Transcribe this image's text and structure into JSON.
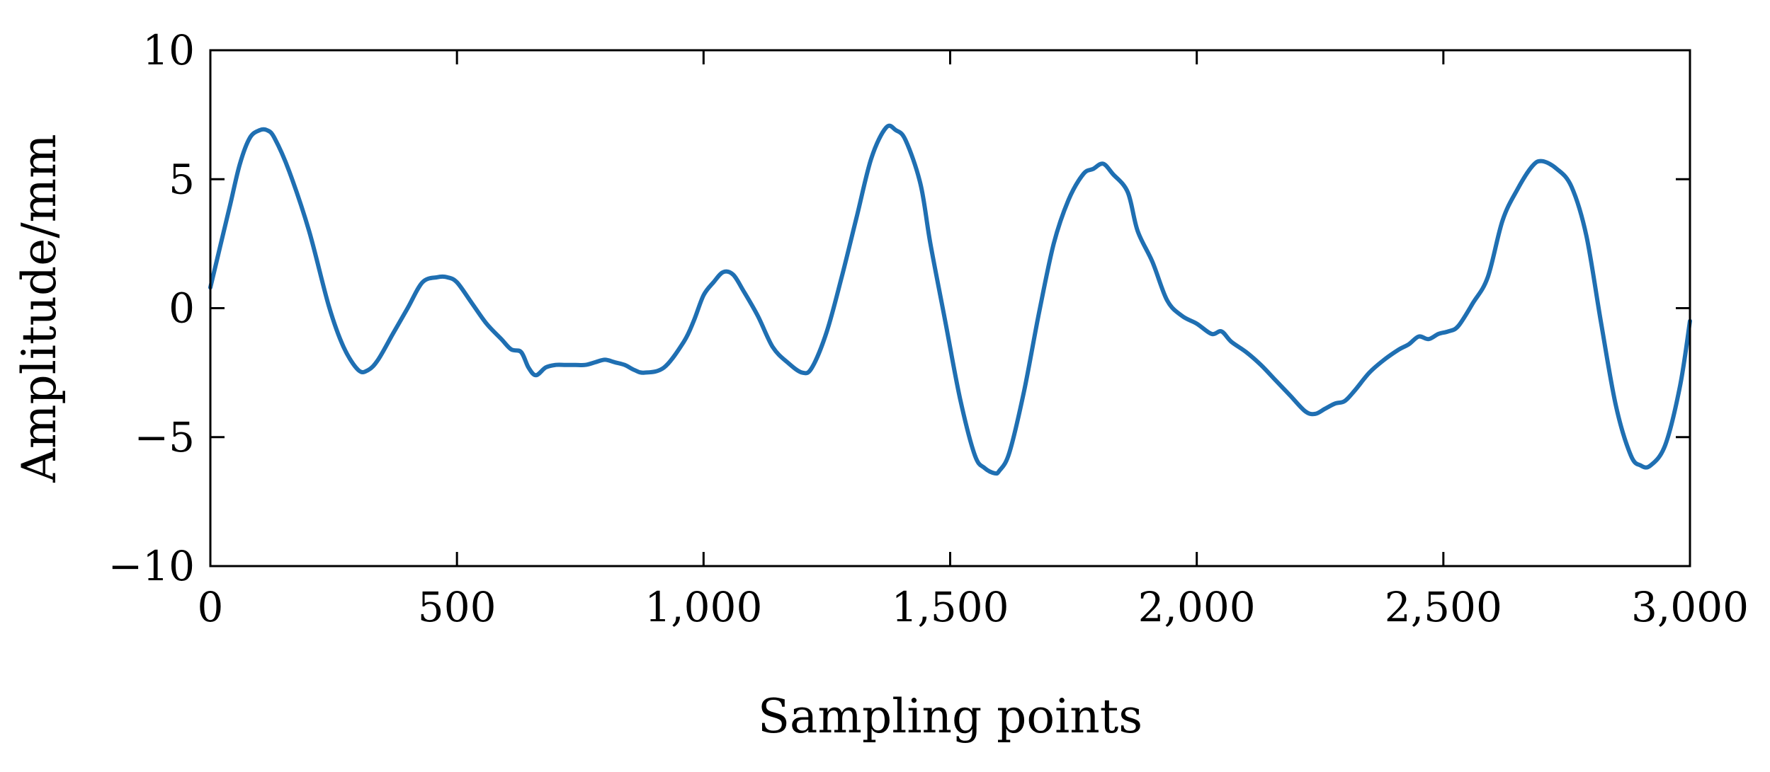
{
  "chart_data": {
    "type": "line",
    "title": "",
    "xlabel": "Sampling points",
    "ylabel": "Amplitude/mm",
    "xlim": [
      0,
      3000
    ],
    "ylim": [
      -10,
      10
    ],
    "grid": false,
    "legend": "none",
    "x_ticks": [
      {
        "value": 0,
        "label": "0"
      },
      {
        "value": 500,
        "label": "500"
      },
      {
        "value": 1000,
        "label": "1,000"
      },
      {
        "value": 1500,
        "label": "1,500"
      },
      {
        "value": 2000,
        "label": "2,000"
      },
      {
        "value": 2500,
        "label": "2,500"
      },
      {
        "value": 3000,
        "label": "3,000"
      }
    ],
    "y_ticks": [
      {
        "value": 10,
        "label": "10"
      },
      {
        "value": 5,
        "label": "5"
      },
      {
        "value": 0,
        "label": "0"
      },
      {
        "value": -5,
        "label": "−5"
      },
      {
        "value": -10,
        "label": "−10"
      }
    ],
    "series": [
      {
        "color": "#1f6fb2",
        "x": [
          0,
          20,
          40,
          60,
          80,
          100,
          115,
          130,
          160,
          200,
          240,
          270,
          300,
          320,
          340,
          370,
          400,
          430,
          460,
          480,
          500,
          530,
          560,
          590,
          610,
          630,
          645,
          660,
          680,
          700,
          720,
          740,
          760,
          780,
          800,
          820,
          840,
          860,
          880,
          920,
          960,
          980,
          1000,
          1020,
          1040,
          1060,
          1080,
          1110,
          1140,
          1170,
          1200,
          1220,
          1250,
          1280,
          1310,
          1340,
          1370,
          1390,
          1410,
          1440,
          1460,
          1490,
          1520,
          1550,
          1570,
          1590,
          1600,
          1620,
          1650,
          1680,
          1710,
          1740,
          1770,
          1790,
          1810,
          1830,
          1860,
          1880,
          1910,
          1940,
          1970,
          2000,
          2030,
          2050,
          2070,
          2100,
          2130,
          2160,
          2190,
          2220,
          2240,
          2260,
          2280,
          2300,
          2320,
          2350,
          2380,
          2410,
          2430,
          2450,
          2470,
          2490,
          2510,
          2530,
          2560,
          2590,
          2620,
          2650,
          2680,
          2700,
          2730,
          2760,
          2790,
          2820,
          2850,
          2880,
          2900,
          2920,
          2950,
          2980,
          3000
        ],
        "values": [
          0.8,
          2.4,
          4.0,
          5.6,
          6.6,
          6.9,
          6.9,
          6.6,
          5.3,
          3.0,
          0.1,
          -1.5,
          -2.4,
          -2.4,
          -2.0,
          -1.0,
          0.0,
          1.0,
          1.2,
          1.2,
          1.0,
          0.2,
          -0.6,
          -1.2,
          -1.6,
          -1.7,
          -2.3,
          -2.6,
          -2.3,
          -2.2,
          -2.2,
          -2.2,
          -2.2,
          -2.1,
          -2.0,
          -2.1,
          -2.2,
          -2.4,
          -2.5,
          -2.3,
          -1.3,
          -0.5,
          0.5,
          1.0,
          1.4,
          1.3,
          0.7,
          -0.3,
          -1.5,
          -2.1,
          -2.5,
          -2.3,
          -0.9,
          1.2,
          3.5,
          5.8,
          7.0,
          6.9,
          6.5,
          4.8,
          2.5,
          -0.5,
          -3.5,
          -5.7,
          -6.2,
          -6.4,
          -6.3,
          -5.6,
          -3.2,
          -0.2,
          2.5,
          4.2,
          5.2,
          5.4,
          5.6,
          5.2,
          4.5,
          3.0,
          1.8,
          0.3,
          -0.3,
          -0.6,
          -1.0,
          -0.9,
          -1.3,
          -1.7,
          -2.2,
          -2.8,
          -3.4,
          -4.0,
          -4.1,
          -3.9,
          -3.7,
          -3.6,
          -3.2,
          -2.5,
          -2.0,
          -1.6,
          -1.4,
          -1.1,
          -1.2,
          -1.0,
          -0.9,
          -0.7,
          0.2,
          1.2,
          3.4,
          4.6,
          5.5,
          5.7,
          5.4,
          4.7,
          2.8,
          -0.6,
          -3.8,
          -5.7,
          -6.1,
          -6.1,
          -5.3,
          -3.0,
          -0.5
        ]
      }
    ]
  }
}
